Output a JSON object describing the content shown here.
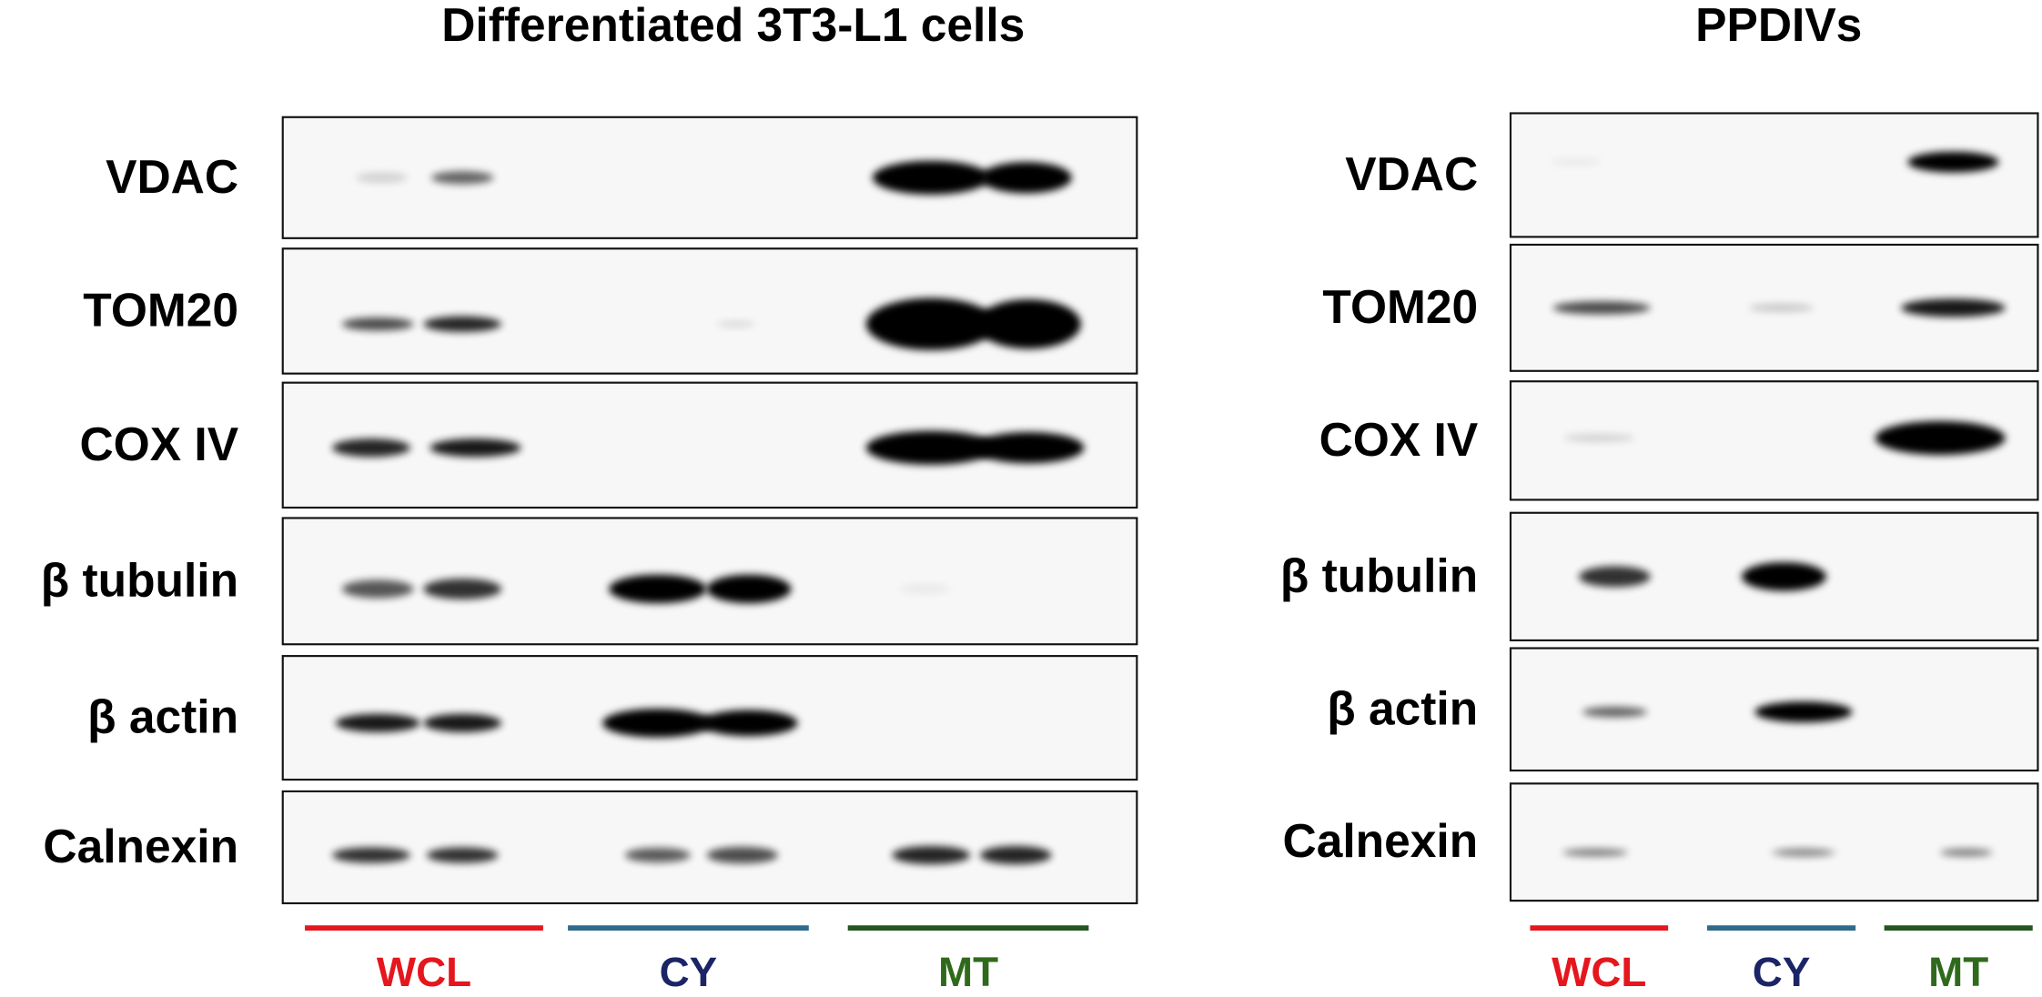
{
  "panels": [
    {
      "title": "Differentiated 3T3-L1 cells",
      "rows": [
        "VDAC",
        "TOM20",
        "COX IV",
        "β tubulin",
        "β actin",
        "Calnexin"
      ],
      "groups": [
        {
          "label": "WCL",
          "color": "#e5161d",
          "line_color": "#e5161d"
        },
        {
          "label": "CY",
          "color": "#1b2466",
          "line_color": "#2e6a8c"
        },
        {
          "label": "MT",
          "color": "#2f6a1c",
          "line_color": "#24561f"
        }
      ]
    },
    {
      "title": "PPDIVs",
      "rows": [
        "VDAC",
        "TOM20",
        "COX IV",
        "β tubulin",
        "β actin",
        "Calnexin"
      ],
      "groups": [
        {
          "label": "WCL",
          "color": "#e5161d",
          "line_color": "#e5161d"
        },
        {
          "label": "CY",
          "color": "#1b2466",
          "line_color": "#2e6a8c"
        },
        {
          "label": "MT",
          "color": "#2f6a1c",
          "line_color": "#24561f"
        }
      ]
    }
  ]
}
